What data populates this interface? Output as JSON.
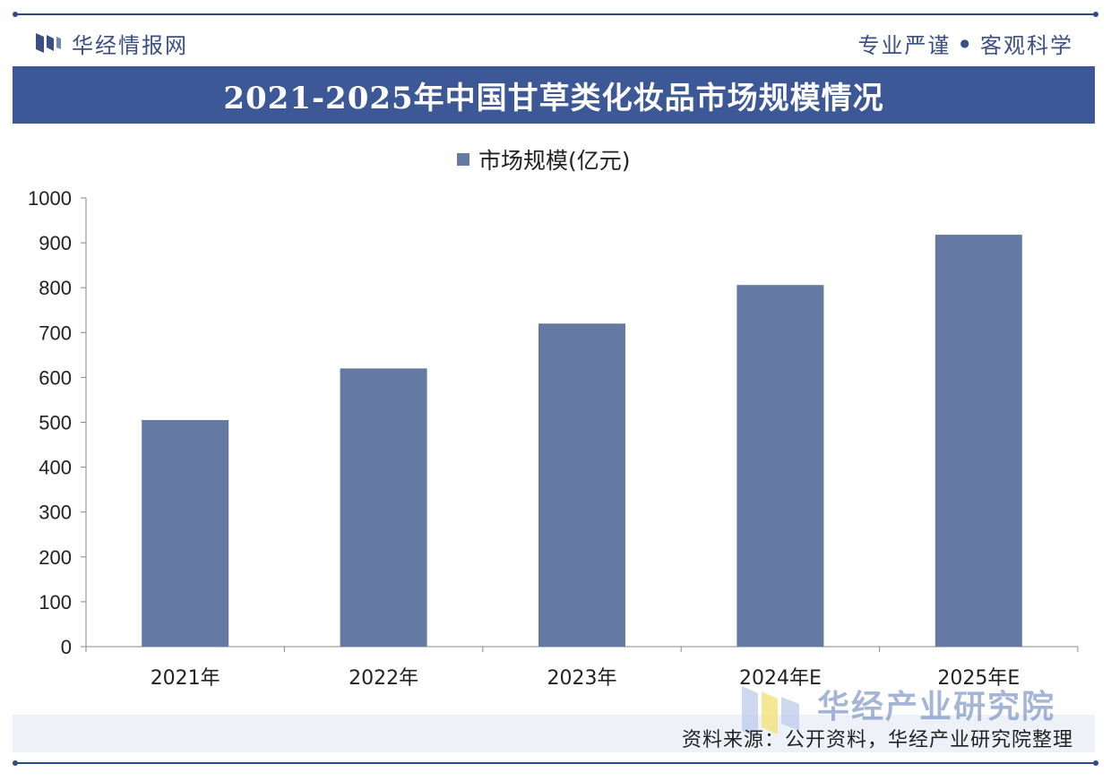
{
  "brand": {
    "name": "华经情报网",
    "logo_icon": "hj-logo-icon"
  },
  "slogan": {
    "left": "专业严谨",
    "separator": "●",
    "right": "客观科学"
  },
  "title": "2021-2025年中国甘草类化妆品市场规模情况",
  "footer": {
    "source": "资料来源：公开资料，华经产业研究院整理",
    "watermark_text": "华经产业研究院"
  },
  "colors": {
    "bar": "#647aa3",
    "title_band": "#3d5896",
    "accent": "#2f4a8a"
  },
  "chart_data": {
    "type": "bar",
    "categories": [
      "2021年",
      "2022年",
      "2023年",
      "2024年E",
      "2025年E"
    ],
    "series": [
      {
        "name": "市场规模(亿元)",
        "values": [
          505,
          620,
          720,
          806,
          918
        ]
      }
    ],
    "ylim": [
      0,
      1000
    ],
    "yticks": [
      0,
      100,
      200,
      300,
      400,
      500,
      600,
      700,
      800,
      900,
      1000
    ],
    "xlabel": "",
    "ylabel": "",
    "grid": false,
    "legend": "top-center"
  }
}
